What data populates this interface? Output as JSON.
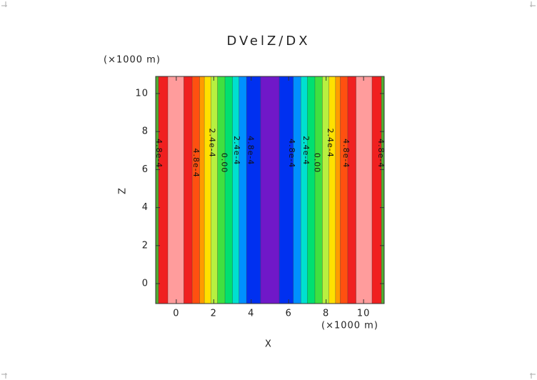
{
  "chart_data": {
    "type": "contour",
    "title": "DVelZ/DX",
    "xlabel": "X",
    "ylabel": "Z",
    "xunits": "(×1000 m)",
    "yunits": "(×1000 m)",
    "xlim": [
      -1.1,
      11.1
    ],
    "ylim": [
      -1.05,
      10.9
    ],
    "xticks": [
      0,
      2,
      4,
      6,
      8,
      10
    ],
    "yticks": [
      0,
      2,
      4,
      6,
      8,
      10
    ],
    "x_edges": [
      -1.1,
      -0.95,
      -0.45,
      0.4,
      0.85,
      1.25,
      1.5,
      1.85,
      2.2,
      2.6,
      3.0,
      3.35,
      3.75,
      4.5,
      5.5,
      6.25,
      6.65,
      7.0,
      7.4,
      7.8,
      8.15,
      8.5,
      8.75,
      9.15,
      9.6,
      10.45,
      10.95,
      11.1
    ],
    "band_colors": [
      "#50b030",
      "#f02020",
      "#ff9c9c",
      "#f02020",
      "#ff5010",
      "#ff9c00",
      "#ffe000",
      "#b8f040",
      "#40e040",
      "#00e070",
      "#00e0d0",
      "#0090ff",
      "#0030f0",
      "#7018c8",
      "#0030f0",
      "#0090ff",
      "#00e0d0",
      "#00e070",
      "#40e040",
      "#b8f040",
      "#ffe000",
      "#ff9c00",
      "#ff5010",
      "#f02020",
      "#ff9c9c",
      "#f02020",
      "#50b030"
    ],
    "contour_labels": [
      {
        "text": "4.8e-4",
        "x": -0.95,
        "y": 6.85
      },
      {
        "text": "4.8e-4",
        "x": 1.03,
        "y": 6.35
      },
      {
        "text": "2.4e-4",
        "x": 1.9,
        "y": 7.4
      },
      {
        "text": "0.00",
        "x": 2.55,
        "y": 6.35
      },
      {
        "text": "2.4e-4",
        "x": 3.2,
        "y": 7.0
      },
      {
        "text": "4.8e-4",
        "x": 3.95,
        "y": 7.0
      },
      {
        "text": "4.8e-4",
        "x": 6.15,
        "y": 6.85
      },
      {
        "text": "2.4e-4",
        "x": 6.9,
        "y": 7.0
      },
      {
        "text": "0.00",
        "x": 7.5,
        "y": 6.35
      },
      {
        "text": "2.4e-4",
        "x": 8.2,
        "y": 7.4
      },
      {
        "text": "4.8e-4",
        "x": 9.05,
        "y": 6.85
      },
      {
        "text": "4.8e-4",
        "x": 10.9,
        "y": 6.85
      }
    ]
  }
}
